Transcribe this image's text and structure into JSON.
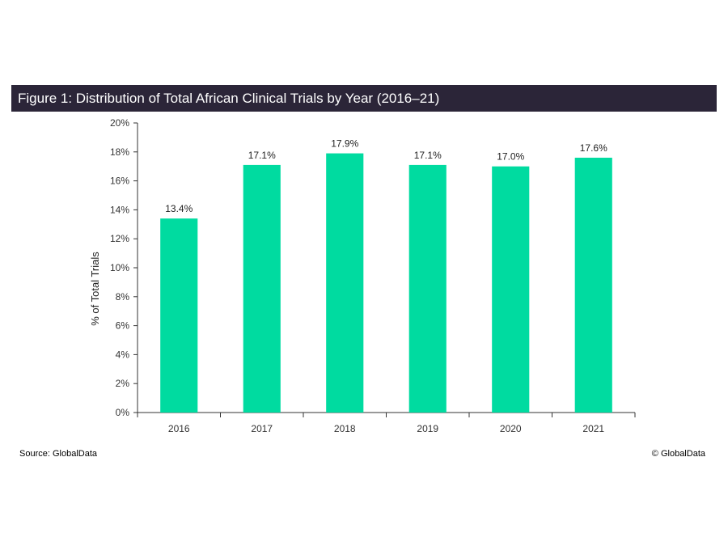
{
  "header": {
    "title": "Figure 1: Distribution of Total African Clinical Trials by Year (2016–21)"
  },
  "footer": {
    "source": "Source: GlobalData",
    "copyright": "© GlobalData"
  },
  "colors": {
    "bar": "#00dba0",
    "title_bg": "#2b2538",
    "axis": "#333333"
  },
  "chart_data": {
    "type": "bar",
    "title": "Figure 1: Distribution of Total African Clinical Trials by Year (2016–21)",
    "categories": [
      "2016",
      "2017",
      "2018",
      "2019",
      "2020",
      "2021"
    ],
    "values": [
      13.4,
      17.1,
      17.9,
      17.1,
      17.0,
      17.6
    ],
    "value_labels": [
      "13.4%",
      "17.1%",
      "17.9%",
      "17.1%",
      "17.0%",
      "17.6%"
    ],
    "xlabel": "",
    "ylabel": "% of Total Trials",
    "ylim": [
      0,
      20
    ],
    "yticks": [
      0,
      2,
      4,
      6,
      8,
      10,
      12,
      14,
      16,
      18,
      20
    ],
    "ytick_labels": [
      "0%",
      "2%",
      "4%",
      "6%",
      "8%",
      "10%",
      "12%",
      "14%",
      "16%",
      "18%",
      "20%"
    ],
    "grid": false,
    "legend": "none"
  }
}
